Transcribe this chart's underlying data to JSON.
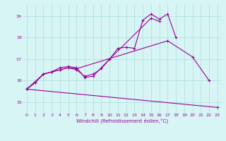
{
  "s1x": [
    0,
    1,
    2,
    3,
    4,
    5,
    6,
    7,
    8,
    9,
    10,
    11,
    12,
    13,
    14,
    15,
    16,
    17,
    18
  ],
  "s1y": [
    15.6,
    15.9,
    16.3,
    16.4,
    16.5,
    16.6,
    16.5,
    16.2,
    16.3,
    16.55,
    17.0,
    17.5,
    17.55,
    17.5,
    18.8,
    19.1,
    18.85,
    19.1,
    18.0
  ],
  "s2x": [
    0,
    1,
    2,
    3,
    4,
    5,
    6,
    7,
    8,
    10,
    15,
    16
  ],
  "s2y": [
    15.6,
    15.9,
    16.3,
    16.4,
    16.6,
    16.65,
    16.6,
    16.15,
    16.2,
    17.0,
    18.9,
    18.75
  ],
  "s3x": [
    0,
    2,
    3,
    4,
    5,
    6,
    17,
    20,
    22
  ],
  "s3y": [
    15.6,
    16.3,
    16.4,
    16.5,
    16.6,
    16.55,
    17.85,
    17.1,
    16.0
  ],
  "s4x": [
    0,
    23
  ],
  "s4y": [
    15.6,
    14.75
  ],
  "color": "#990099",
  "bg_color": "#d8f5f5",
  "grid_color": "#aadddd",
  "xlabel": "Windchill (Refroidissement éolien,°C)",
  "ylim": [
    14.5,
    19.55
  ],
  "xlim": [
    -0.5,
    23.5
  ],
  "yticks": [
    15,
    16,
    17,
    18,
    19
  ],
  "xticks": [
    0,
    1,
    2,
    3,
    4,
    5,
    6,
    7,
    8,
    9,
    10,
    11,
    12,
    13,
    14,
    15,
    16,
    17,
    18,
    19,
    20,
    21,
    22,
    23
  ]
}
